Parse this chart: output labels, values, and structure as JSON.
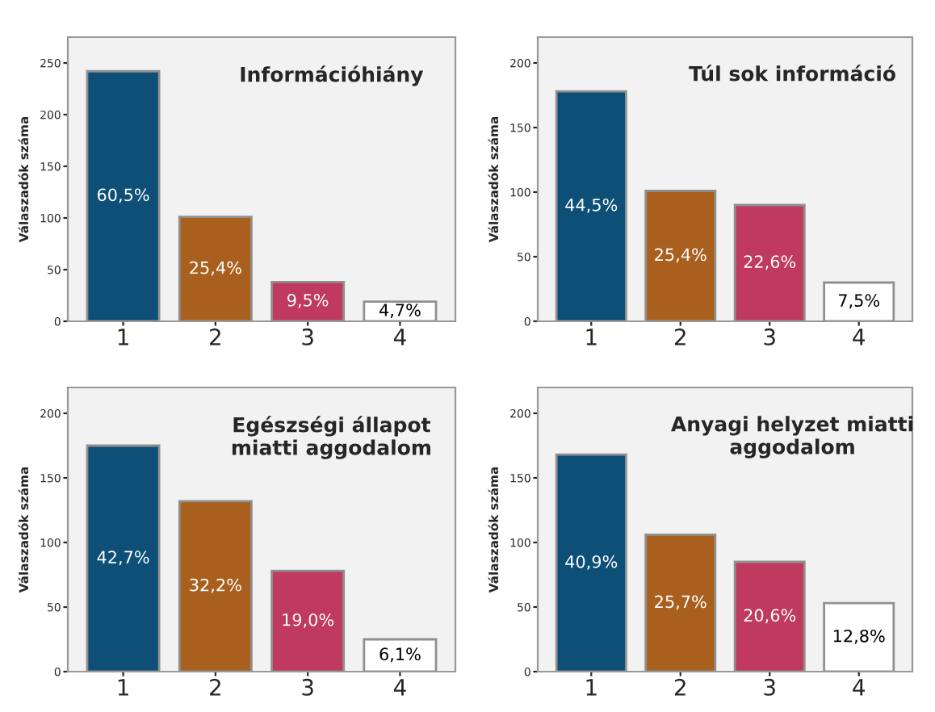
{
  "chart_data": [
    {
      "type": "bar",
      "title": "Információhiány",
      "ylabel": "Válaszadók száma",
      "categories": [
        "1",
        "2",
        "3",
        "4"
      ],
      "values": [
        242,
        101,
        38,
        19
      ],
      "colors": [
        "#0d4f77",
        "#a9601f",
        "#c0395e",
        "#ffffff"
      ],
      "annotations": [
        "60,5%",
        "25,4%",
        "9,5%",
        "4,7%"
      ],
      "ylim": [
        0,
        275
      ],
      "yticks": [
        0,
        50,
        100,
        150,
        200,
        250
      ],
      "grid": false,
      "legend": false
    },
    {
      "type": "bar",
      "title": "Túl sok információ",
      "ylabel": "Válaszadók száma",
      "categories": [
        "1",
        "2",
        "3",
        "4"
      ],
      "values": [
        178,
        101,
        90,
        30
      ],
      "colors": [
        "#0d4f77",
        "#a9601f",
        "#c0395e",
        "#ffffff"
      ],
      "annotations": [
        "44,5%",
        "25,4%",
        "22,6%",
        "7,5%"
      ],
      "ylim": [
        0,
        220
      ],
      "yticks": [
        0,
        50,
        100,
        150,
        200
      ],
      "grid": false,
      "legend": false
    },
    {
      "type": "bar",
      "title": "Egészségi állapot\nmiatti aggodalom",
      "ylabel": "Válaszadók száma",
      "categories": [
        "1",
        "2",
        "3",
        "4"
      ],
      "values": [
        175,
        132,
        78,
        25
      ],
      "colors": [
        "#0d4f77",
        "#a9601f",
        "#c0395e",
        "#ffffff"
      ],
      "annotations": [
        "42,7%",
        "32,2%",
        "19,0%",
        "6,1%"
      ],
      "ylim": [
        0,
        220
      ],
      "yticks": [
        0,
        50,
        100,
        150,
        200
      ],
      "grid": false,
      "legend": false
    },
    {
      "type": "bar",
      "title": "Anyagi helyzet miatti\naggodalom",
      "ylabel": "Válaszadók száma",
      "categories": [
        "1",
        "2",
        "3",
        "4"
      ],
      "values": [
        168,
        106,
        85,
        53
      ],
      "colors": [
        "#0d4f77",
        "#a9601f",
        "#c0395e",
        "#ffffff"
      ],
      "annotations": [
        "40,9%",
        "25,7%",
        "20,6%",
        "12,8%"
      ],
      "ylim": [
        0,
        220
      ],
      "yticks": [
        0,
        50,
        100,
        150,
        200
      ],
      "grid": false,
      "legend": false
    }
  ]
}
